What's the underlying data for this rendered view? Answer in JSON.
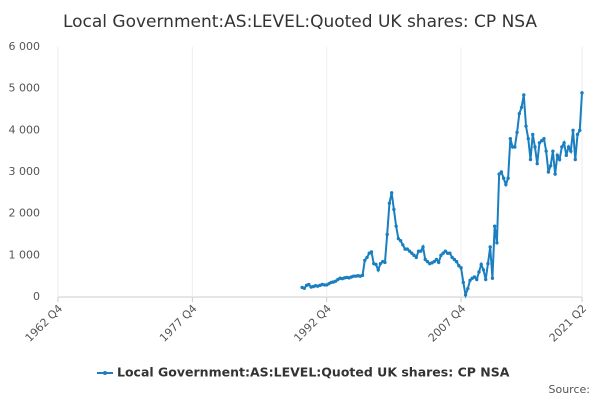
{
  "chart_data": {
    "type": "line",
    "title": "Local Government:AS:LEVEL:Quoted UK shares: CP NSA",
    "source": "Source:",
    "xlim": [
      "1962 Q4",
      "2021 Q2"
    ],
    "xticks": [
      "1962 Q4",
      "1977 Q4",
      "1992 Q4",
      "2007 Q4",
      "2021 Q2"
    ],
    "ylim": [
      0,
      6000
    ],
    "yticks": [
      0,
      {
        "value": 1000,
        "label": "1 000"
      },
      {
        "value": 2000,
        "label": "2 000"
      },
      {
        "value": 3000,
        "label": "3 000"
      },
      {
        "value": 4000,
        "label": "4 000"
      },
      {
        "value": 5000,
        "label": "5 000"
      },
      {
        "value": 6000,
        "label": "6 000"
      }
    ],
    "grid": true,
    "legend": "bottom",
    "x": [
      "1990 Q1",
      "1990 Q2",
      "1990 Q3",
      "1990 Q4",
      "1991 Q1",
      "1991 Q2",
      "1991 Q3",
      "1991 Q4",
      "1992 Q1",
      "1992 Q2",
      "1992 Q3",
      "1992 Q4",
      "1993 Q1",
      "1993 Q2",
      "1993 Q3",
      "1993 Q4",
      "1994 Q1",
      "1994 Q2",
      "1994 Q3",
      "1994 Q4",
      "1995 Q1",
      "1995 Q2",
      "1995 Q3",
      "1995 Q4",
      "1996 Q1",
      "1996 Q2",
      "1996 Q3",
      "1996 Q4",
      "1997 Q1",
      "1997 Q2",
      "1997 Q3",
      "1997 Q4",
      "1998 Q1",
      "1998 Q2",
      "1998 Q3",
      "1998 Q4",
      "1999 Q1",
      "1999 Q2",
      "1999 Q3",
      "1999 Q4",
      "2000 Q1",
      "2000 Q2",
      "2000 Q3",
      "2000 Q4",
      "2001 Q1",
      "2001 Q2",
      "2001 Q3",
      "2001 Q4",
      "2002 Q1",
      "2002 Q2",
      "2002 Q3",
      "2002 Q4",
      "2003 Q1",
      "2003 Q2",
      "2003 Q3",
      "2003 Q4",
      "2004 Q1",
      "2004 Q2",
      "2004 Q3",
      "2004 Q4",
      "2005 Q1",
      "2005 Q2",
      "2005 Q3",
      "2005 Q4",
      "2006 Q1",
      "2006 Q2",
      "2006 Q3",
      "2006 Q4",
      "2007 Q1",
      "2007 Q2",
      "2007 Q3",
      "2007 Q4",
      "2008 Q1",
      "2008 Q2",
      "2008 Q3",
      "2008 Q4",
      "2009 Q1",
      "2009 Q2",
      "2009 Q3",
      "2009 Q4",
      "2010 Q1",
      "2010 Q2",
      "2010 Q3",
      "2010 Q4",
      "2011 Q1",
      "2011 Q2",
      "2011 Q3",
      "2011 Q4",
      "2012 Q1",
      "2012 Q2",
      "2012 Q3",
      "2012 Q4",
      "2013 Q1",
      "2013 Q2",
      "2013 Q3",
      "2013 Q4",
      "2014 Q1",
      "2014 Q2",
      "2014 Q3",
      "2014 Q4",
      "2015 Q1",
      "2015 Q2",
      "2015 Q3",
      "2015 Q4",
      "2016 Q1",
      "2016 Q2",
      "2016 Q3",
      "2016 Q4",
      "2017 Q1",
      "2017 Q2",
      "2017 Q3",
      "2017 Q4",
      "2018 Q1",
      "2018 Q2",
      "2018 Q3",
      "2018 Q4",
      "2019 Q1",
      "2019 Q2",
      "2019 Q3",
      "2019 Q4",
      "2020 Q1",
      "2020 Q2",
      "2020 Q3",
      "2020 Q4",
      "2021 Q1",
      "2021 Q2"
    ],
    "series": [
      {
        "name": "Local Government:AS:LEVEL:Quoted UK shares: CP NSA",
        "color": "#1a7fc1",
        "values": [
          230,
          210,
          280,
          300,
          240,
          250,
          270,
          260,
          280,
          300,
          290,
          290,
          320,
          350,
          360,
          380,
          420,
          450,
          440,
          460,
          470,
          460,
          480,
          500,
          500,
          510,
          500,
          520,
          880,
          950,
          1050,
          1080,
          800,
          780,
          650,
          800,
          850,
          830,
          1500,
          2250,
          2500,
          2100,
          1700,
          1400,
          1350,
          1250,
          1150,
          1150,
          1100,
          1050,
          1000,
          950,
          1100,
          1100,
          1200,
          900,
          850,
          800,
          820,
          850,
          900,
          830,
          1000,
          1050,
          1100,
          1050,
          1050,
          950,
          900,
          850,
          750,
          700,
          350,
          50,
          200,
          400,
          450,
          480,
          420,
          600,
          780,
          650,
          420,
          800,
          1200,
          450,
          1700,
          1300,
          2950,
          3000,
          2850,
          2700,
          2850,
          3800,
          3600,
          3600,
          3950,
          4400,
          4550,
          4850,
          4100,
          3800,
          3300,
          3900,
          3600,
          3200,
          3700,
          3750,
          3800,
          3500,
          3000,
          3150,
          3500,
          2950,
          3400,
          3300,
          3600,
          3700,
          3400,
          3600,
          3500,
          4000,
          3300,
          3900,
          4000,
          4900
        ]
      }
    ]
  }
}
